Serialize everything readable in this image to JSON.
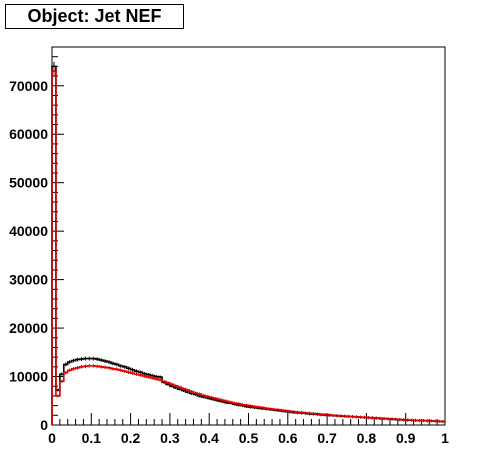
{
  "title": "Object: Jet NEF",
  "colors": {
    "series_black": "#000000",
    "series_red": "#dd0000",
    "frame": "#000000"
  },
  "chart_data": {
    "type": "line",
    "title": "Object: Jet NEF",
    "xlabel": "",
    "ylabel": "",
    "xlim": [
      0,
      1
    ],
    "ylim": [
      0,
      78000
    ],
    "grid": false,
    "legend": "none",
    "x_ticks": [
      "0",
      "0.1",
      "0.2",
      "0.3",
      "0.4",
      "0.5",
      "0.6",
      "0.7",
      "0.8",
      "0.9",
      "1"
    ],
    "x_tick_values": [
      0,
      0.1,
      0.2,
      0.3,
      0.4,
      0.5,
      0.6,
      0.7,
      0.8,
      0.9,
      1
    ],
    "y_ticks": [
      "0",
      "10000",
      "20000",
      "30000",
      "40000",
      "50000",
      "60000",
      "70000"
    ],
    "y_tick_values": [
      0,
      10000,
      20000,
      30000,
      40000,
      50000,
      60000,
      70000
    ],
    "bin_width": 0.01,
    "series": [
      {
        "color": "#000000",
        "values": [
          74000,
          7200,
          10500,
          12500,
          13000,
          13300,
          13500,
          13600,
          13700,
          13700,
          13700,
          13600,
          13400,
          13200,
          13000,
          12700,
          12500,
          12200,
          12000,
          11700,
          11400,
          11100,
          10900,
          10600,
          10400,
          10200,
          10000,
          9900,
          8800,
          8400,
          8000,
          7700,
          7400,
          7100,
          6800,
          6500,
          6300,
          6000,
          5800,
          5600,
          5400,
          5200,
          5000,
          4800,
          4600,
          4500,
          4300,
          4100,
          4000,
          3800,
          3700,
          3600,
          3500,
          3400,
          3300,
          3200,
          3100,
          3000,
          2900,
          2800,
          2700,
          2600,
          2500,
          2450,
          2400,
          2300,
          2250,
          2200,
          2100,
          2050,
          2000,
          1950,
          1900,
          1850,
          1800,
          1750,
          1700,
          1650,
          1600,
          1550,
          1500,
          1450,
          1400,
          1350,
          1300,
          1250,
          1200,
          1150,
          1100,
          1050,
          1000,
          980,
          950,
          920,
          900,
          870,
          840,
          800,
          760,
          700
        ]
      },
      {
        "color": "#dd0000",
        "values": [
          73000,
          6000,
          9000,
          10800,
          11300,
          11600,
          11800,
          12000,
          12100,
          12200,
          12200,
          12100,
          12000,
          11900,
          11800,
          11600,
          11500,
          11300,
          11100,
          10900,
          10700,
          10500,
          10300,
          10100,
          9900,
          9700,
          9500,
          9300,
          9000,
          8700,
          8400,
          8100,
          7800,
          7500,
          7200,
          6900,
          6600,
          6400,
          6100,
          5900,
          5700,
          5500,
          5300,
          5100,
          4900,
          4700,
          4500,
          4400,
          4200,
          4100,
          3950,
          3800,
          3700,
          3600,
          3450,
          3350,
          3250,
          3150,
          3050,
          2950,
          2850,
          2750,
          2650,
          2600,
          2500,
          2450,
          2350,
          2300,
          2200,
          2150,
          2100,
          2000,
          1950,
          1900,
          1850,
          1800,
          1750,
          1700,
          1650,
          1600,
          1550,
          1500,
          1450,
          1400,
          1350,
          1300,
          1250,
          1200,
          1150,
          1100,
          1050,
          1000,
          970,
          940,
          910,
          880,
          850,
          820,
          780,
          720
        ]
      }
    ]
  }
}
